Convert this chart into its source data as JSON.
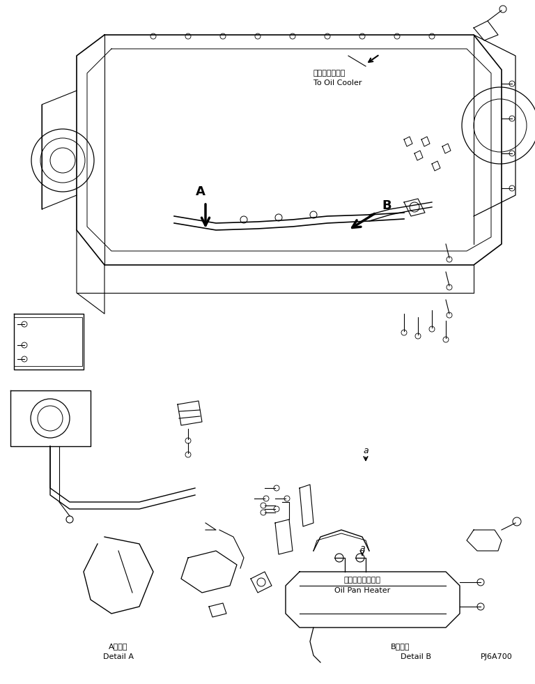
{
  "title": "",
  "background_color": "#ffffff",
  "fig_width": 7.68,
  "fig_height": 9.81,
  "dpi": 100,
  "label_A_jp": "オイルクーラヘ",
  "label_A_en": "To Oil Cooler",
  "label_B_jp": "オイルパンヒータ",
  "label_B_en": "Oil Pan Heater",
  "detail_a_jp": "A　詳細",
  "detail_a_en": "Detail A",
  "detail_b_jp": "B　詳細",
  "detail_b_en": "Detail B",
  "part_code": "PJ6A700",
  "line_color": "#000000",
  "line_width": 0.8
}
